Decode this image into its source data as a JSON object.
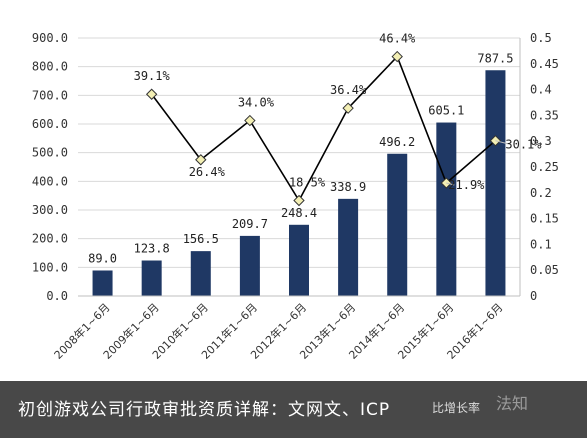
{
  "chart_data": {
    "type": "bar+line",
    "categories": [
      "2008年1~6月",
      "2009年1~6月",
      "2010年1~6月",
      "2011年1~6月",
      "2012年1~6月",
      "2013年1~6月",
      "2014年1~6月",
      "2015年1~6月",
      "2016年1~6月"
    ],
    "series": [
      {
        "kind": "bar",
        "axis": "left",
        "values": [
          89.0,
          123.8,
          156.5,
          209.7,
          248.4,
          338.9,
          496.2,
          605.1,
          787.5
        ],
        "labels": [
          "89.0",
          "123.8",
          "156.5",
          "209.7",
          "248.4",
          "338.9",
          "496.2",
          "605.1",
          "787.5"
        ],
        "color": "#1f3864"
      },
      {
        "name": "比增长率",
        "kind": "line",
        "axis": "right",
        "values": [
          null,
          0.391,
          0.264,
          0.34,
          0.185,
          0.364,
          0.464,
          0.219,
          0.301
        ],
        "labels": [
          "",
          "39.1%",
          "26.4%",
          "34.0%",
          "18.5%",
          "36.4%",
          "46.4%",
          "21.9%",
          "30.1%"
        ],
        "color": "#000000",
        "marker_color": "#f3efb4"
      }
    ],
    "left_axis": {
      "ylim": [
        0,
        900
      ],
      "ticks": [
        "0.0",
        "100.0",
        "200.0",
        "300.0",
        "400.0",
        "500.0",
        "600.0",
        "700.0",
        "800.0",
        "900.0"
      ]
    },
    "right_axis": {
      "ylim": [
        0,
        0.5
      ],
      "ticks": [
        "0",
        "0.05",
        "0.1",
        "0.15",
        "0.2",
        "0.25",
        "0.3",
        "0.35",
        "0.4",
        "0.45",
        "0.5"
      ]
    },
    "grid": "horizontal"
  },
  "caption": {
    "text": "初创游戏公司行政审批资质详解：文网文、ICP",
    "legend_fragment": "比增长率",
    "watermark": "法知"
  }
}
